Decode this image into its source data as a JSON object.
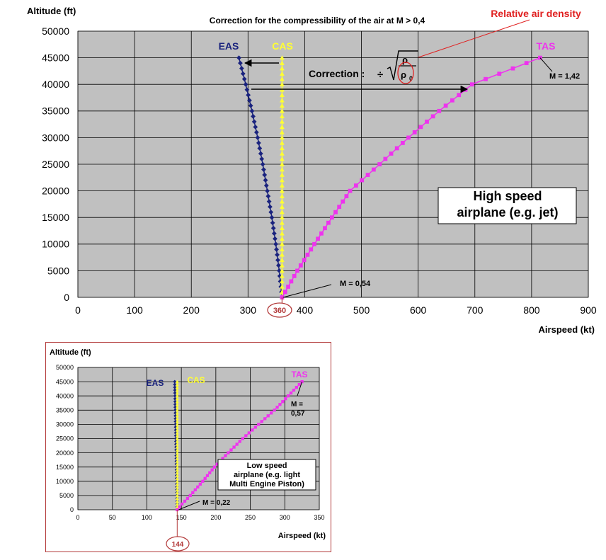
{
  "chart_data": [
    {
      "type": "line",
      "title": "",
      "ylabel": "Altitude (ft)",
      "xlabel": "Airspeed (kt)",
      "xlim": [
        0,
        900
      ],
      "ylim": [
        0,
        50000
      ],
      "x_ticks": [
        0,
        100,
        200,
        300,
        400,
        500,
        600,
        700,
        800,
        900
      ],
      "y_ticks": [
        0,
        5000,
        10000,
        15000,
        20000,
        25000,
        30000,
        35000,
        40000,
        45000,
        50000
      ],
      "grid": true,
      "series": [
        {
          "name": "EAS",
          "color": "#1a237e",
          "marker": "diamond",
          "points": [
            [
              360,
              0
            ],
            [
              355,
              5000
            ],
            [
              349,
              10000
            ],
            [
              342,
              15000
            ],
            [
              334,
              20000
            ],
            [
              326,
              25000
            ],
            [
              317,
              30000
            ],
            [
              307,
              35000
            ],
            [
              296,
              40000
            ],
            [
              284,
              45000
            ]
          ]
        },
        {
          "name": "CAS",
          "color": "#ffff33",
          "marker": "triangle",
          "points": [
            [
              360,
              0
            ],
            [
              360,
              5000
            ],
            [
              360,
              10000
            ],
            [
              360,
              15000
            ],
            [
              360,
              20000
            ],
            [
              360,
              25000
            ],
            [
              360,
              30000
            ],
            [
              360,
              35000
            ],
            [
              360,
              40000
            ],
            [
              360,
              45000
            ]
          ]
        },
        {
          "name": "TAS",
          "color": "#ee33ee",
          "marker": "square",
          "points": [
            [
              360,
              0
            ],
            [
              387,
              5000
            ],
            [
              417,
              10000
            ],
            [
              448,
              15000
            ],
            [
              480,
              20000
            ],
            [
              532,
              25000
            ],
            [
              583,
              30000
            ],
            [
              637,
              35000
            ],
            [
              695,
              40000
            ],
            [
              815,
              45000
            ]
          ]
        }
      ],
      "annotations": {
        "compress": "Correction for the compressibility of the air at M > 0,4",
        "density": "Relative air density",
        "correction": "Correction :",
        "rho": "ρ",
        "rho0": "ρ",
        "rho0_sub": "0",
        "divide": "÷",
        "mach_high": "M = 1,42",
        "mach_low": "M = 0,54",
        "circled": "360",
        "box": [
          "High speed",
          "airplane (e.g. jet)"
        ]
      }
    },
    {
      "type": "line",
      "title": "",
      "ylabel": "Altitude (ft)",
      "xlabel": "Airspeed (kt)",
      "xlim": [
        0,
        350
      ],
      "ylim": [
        0,
        50000
      ],
      "x_ticks": [
        0,
        50,
        100,
        150,
        200,
        250,
        300,
        350
      ],
      "y_ticks": [
        0,
        5000,
        10000,
        15000,
        20000,
        25000,
        30000,
        35000,
        40000,
        45000,
        50000
      ],
      "grid": true,
      "series": [
        {
          "name": "EAS",
          "color": "#1a237e",
          "marker": "diamond",
          "points": [
            [
              144,
              0
            ],
            [
              143.6,
              5000
            ],
            [
              143.2,
              10000
            ],
            [
              142.8,
              15000
            ],
            [
              142.4,
              20000
            ],
            [
              142,
              25000
            ],
            [
              141.6,
              30000
            ],
            [
              141.2,
              35000
            ],
            [
              140.8,
              40000
            ],
            [
              140.4,
              45000
            ]
          ]
        },
        {
          "name": "CAS",
          "color": "#ffff33",
          "marker": "triangle",
          "points": [
            [
              144,
              0
            ],
            [
              144,
              5000
            ],
            [
              144,
              10000
            ],
            [
              144,
              15000
            ],
            [
              144,
              20000
            ],
            [
              144,
              25000
            ],
            [
              144,
              30000
            ],
            [
              144,
              35000
            ],
            [
              144,
              40000
            ],
            [
              144,
              45000
            ]
          ]
        },
        {
          "name": "TAS",
          "color": "#ee33ee",
          "marker": "square",
          "points": [
            [
              144,
              0
            ],
            [
              151,
              2000
            ],
            [
              163,
              5000
            ],
            [
              181,
              10000
            ],
            [
              198,
              15000
            ],
            [
              218,
              20000
            ],
            [
              239,
              25000
            ],
            [
              262,
              30000
            ],
            [
              285,
              35000
            ],
            [
              305,
              40000
            ],
            [
              325,
              45000
            ]
          ]
        }
      ],
      "annotations": {
        "mach_high": "M = 0,57",
        "mach_high_l1": "M =",
        "mach_high_l2": "0,57",
        "mach_low": "M = 0,22",
        "circled": "144",
        "box": [
          "Low speed",
          "airplane (e.g. light",
          "Multi Engine Piston)"
        ]
      }
    }
  ]
}
